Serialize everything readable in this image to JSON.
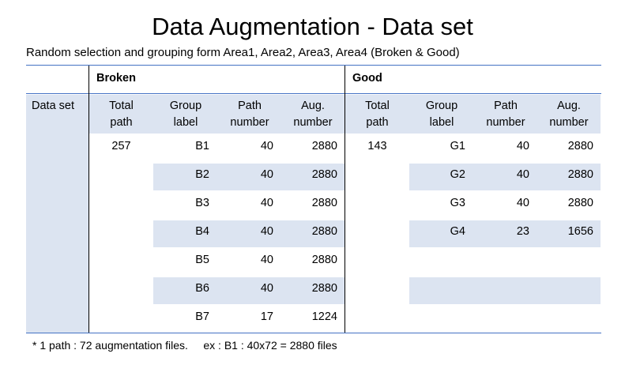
{
  "title": "Data Augmentation - Data set",
  "subtitle": "Random selection and grouping form Area1, Area2, Area3, Area4 (Broken & Good)",
  "footnote": "* 1 path : 72 augmentation files.     ex : B1 : 40x72 = 2880 files",
  "colors": {
    "border_blue": "#4472c4",
    "fill_blue": "#dce4f1",
    "divider": "#000000"
  },
  "table": {
    "group_headers": {
      "broken": "Broken",
      "good": "Good"
    },
    "row_header": "Data set",
    "columns": {
      "total_path": [
        "Total",
        "path"
      ],
      "group_label": [
        "Group",
        "label"
      ],
      "path_number": [
        "Path",
        "number"
      ],
      "aug_number": [
        "Aug.",
        "number"
      ]
    },
    "broken": {
      "total_path": "257",
      "rows": [
        {
          "label": "B1",
          "path": "40",
          "aug": "2880"
        },
        {
          "label": "B2",
          "path": "40",
          "aug": "2880"
        },
        {
          "label": "B3",
          "path": "40",
          "aug": "2880"
        },
        {
          "label": "B4",
          "path": "40",
          "aug": "2880"
        },
        {
          "label": "B5",
          "path": "40",
          "aug": "2880"
        },
        {
          "label": "B6",
          "path": "40",
          "aug": "2880"
        },
        {
          "label": "B7",
          "path": "17",
          "aug": "1224"
        }
      ]
    },
    "good": {
      "total_path": "143",
      "rows": [
        {
          "label": "G1",
          "path": "40",
          "aug": "2880"
        },
        {
          "label": "G2",
          "path": "40",
          "aug": "2880"
        },
        {
          "label": "G3",
          "path": "40",
          "aug": "2880"
        },
        {
          "label": "G4",
          "path": "23",
          "aug": "1656"
        }
      ]
    }
  }
}
